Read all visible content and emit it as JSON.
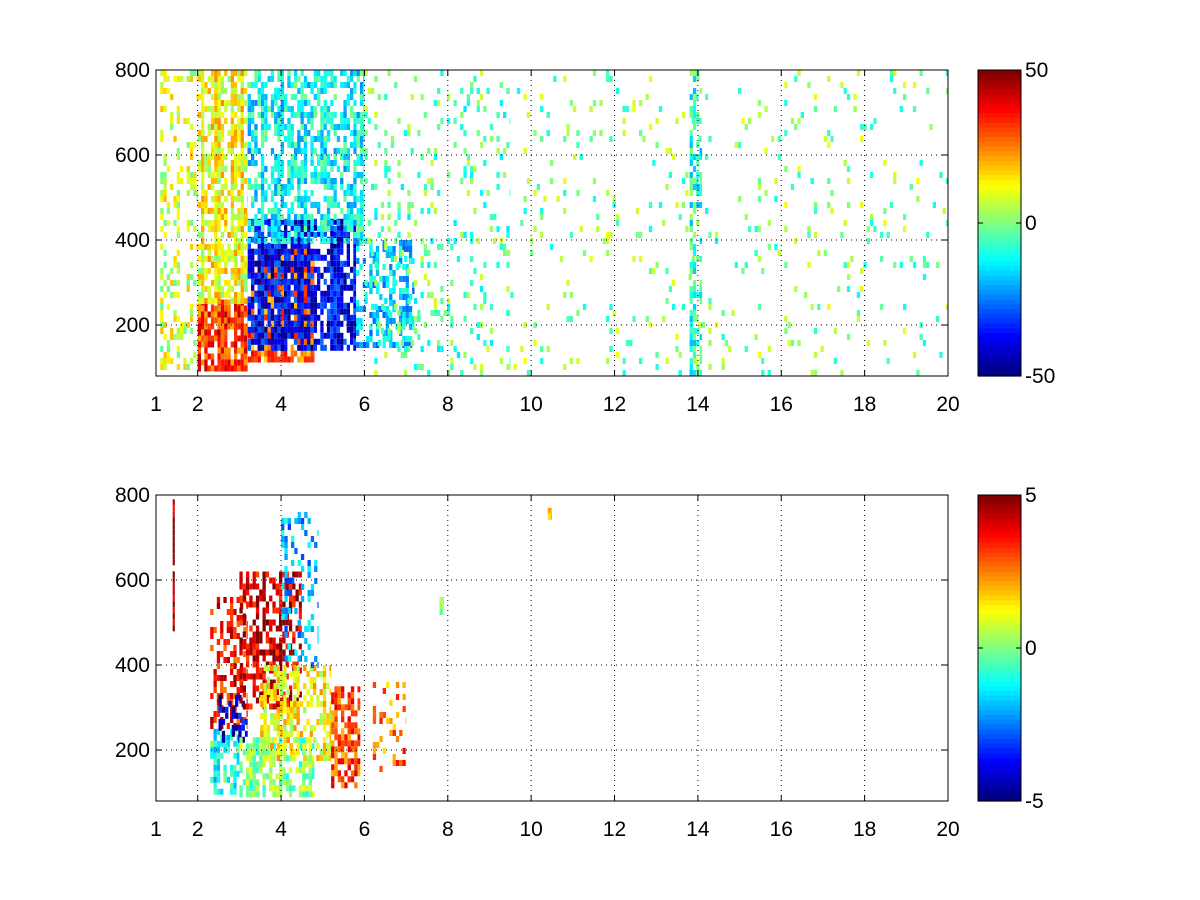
{
  "chart_data": [
    {
      "type": "heatmap",
      "title": "",
      "xlabel": "",
      "ylabel": "",
      "xlim": [
        1,
        20
      ],
      "ylim": [
        80,
        800
      ],
      "x_ticks": [
        "1",
        "2",
        "4",
        "6",
        "8",
        "10",
        "12",
        "14",
        "16",
        "18",
        "20"
      ],
      "y_ticks": [
        "200",
        "400",
        "600",
        "800"
      ],
      "grid": true,
      "colormap": "jet",
      "colorbar": {
        "min": -50,
        "max": 50,
        "tick_labels": [
          "50",
          "0",
          "-50"
        ]
      },
      "regions": [
        {
          "x": [
            1.1,
            2.0
          ],
          "y": [
            100,
            800
          ],
          "value": 8,
          "density": 0.35
        },
        {
          "x": [
            2.0,
            3.2
          ],
          "y": [
            100,
            260
          ],
          "value": 32,
          "density": 0.9
        },
        {
          "x": [
            2.0,
            3.2
          ],
          "y": [
            260,
            800
          ],
          "value": 12,
          "density": 0.75
        },
        {
          "x": [
            3.2,
            4.8
          ],
          "y": [
            120,
            380
          ],
          "value": 28,
          "density": 0.75
        },
        {
          "x": [
            3.2,
            5.8
          ],
          "y": [
            150,
            450
          ],
          "value": -38,
          "density": 0.7
        },
        {
          "x": [
            3.2,
            6.0
          ],
          "y": [
            400,
            800
          ],
          "value": -12,
          "density": 0.55
        },
        {
          "x": [
            5.8,
            7.2
          ],
          "y": [
            150,
            400
          ],
          "value": -18,
          "density": 0.45
        },
        {
          "x": [
            6.0,
            9.5
          ],
          "y": [
            80,
            800
          ],
          "value": -3,
          "density": 0.12
        },
        {
          "x": [
            9.5,
            20.0
          ],
          "y": [
            80,
            800
          ],
          "value": 0,
          "density": 0.06
        },
        {
          "x": [
            13.8,
            14.1
          ],
          "y": [
            80,
            800
          ],
          "value": -8,
          "density": 0.45
        }
      ]
    },
    {
      "type": "heatmap",
      "title": "",
      "xlabel": "",
      "ylabel": "",
      "xlim": [
        1,
        20
      ],
      "ylim": [
        80,
        800
      ],
      "x_ticks": [
        "1",
        "2",
        "4",
        "6",
        "8",
        "10",
        "12",
        "14",
        "16",
        "18",
        "20"
      ],
      "y_ticks": [
        "200",
        "400",
        "600",
        "800"
      ],
      "grid": true,
      "colormap": "jet",
      "colorbar": {
        "min": -5,
        "max": 5,
        "tick_labels": [
          "5",
          "0",
          "-5"
        ]
      },
      "regions": [
        {
          "x": [
            1.4,
            1.45
          ],
          "y": [
            490,
            790
          ],
          "value": 4.8,
          "density": 1.0
        },
        {
          "x": [
            2.3,
            3.0
          ],
          "y": [
            100,
            250
          ],
          "value": -1,
          "density": 0.7
        },
        {
          "x": [
            2.3,
            3.2
          ],
          "y": [
            250,
            560
          ],
          "value": 3.6,
          "density": 0.4
        },
        {
          "x": [
            2.5,
            3.2
          ],
          "y": [
            220,
            330
          ],
          "value": -4.2,
          "density": 0.45
        },
        {
          "x": [
            3.0,
            4.5
          ],
          "y": [
            300,
            620
          ],
          "value": 4.2,
          "density": 0.55
        },
        {
          "x": [
            3.0,
            4.8
          ],
          "y": [
            100,
            230
          ],
          "value": 0,
          "density": 0.6
        },
        {
          "x": [
            3.5,
            5.2
          ],
          "y": [
            180,
            400
          ],
          "value": 1.2,
          "density": 0.55
        },
        {
          "x": [
            4.0,
            4.9
          ],
          "y": [
            400,
            760
          ],
          "value": -2,
          "density": 0.3
        },
        {
          "x": [
            5.2,
            5.9
          ],
          "y": [
            120,
            350
          ],
          "value": 3,
          "density": 0.55
        },
        {
          "x": [
            6.2,
            7.0
          ],
          "y": [
            160,
            360
          ],
          "value": 2.5,
          "density": 0.3
        },
        {
          "x": [
            7.8,
            7.9
          ],
          "y": [
            530,
            560
          ],
          "value": 0.3,
          "density": 1.0
        },
        {
          "x": [
            10.4,
            10.5
          ],
          "y": [
            750,
            770
          ],
          "value": 1.5,
          "density": 1.0
        }
      ]
    }
  ]
}
